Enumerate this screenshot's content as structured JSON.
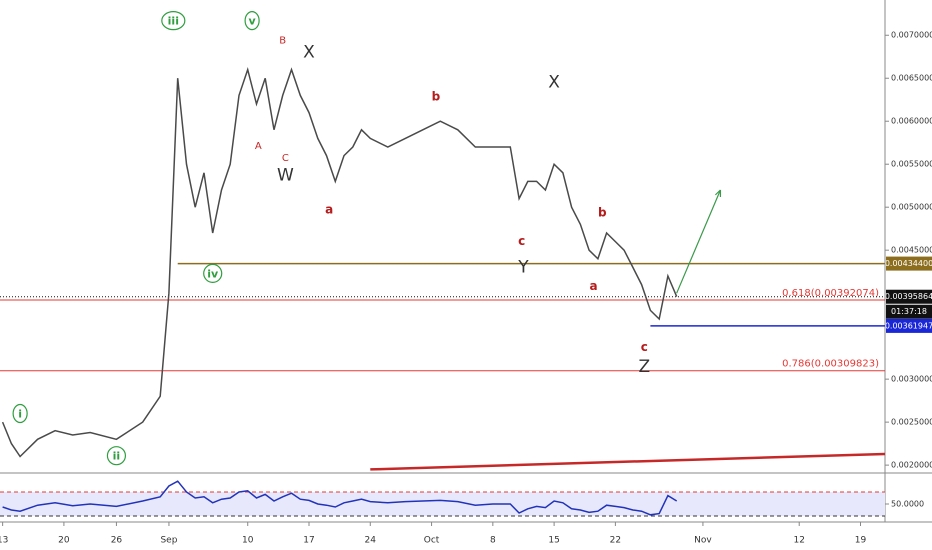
{
  "chart_data": [
    {
      "type": "line",
      "x": [
        0,
        1,
        2,
        4,
        6,
        8,
        10,
        13,
        16,
        18,
        19,
        20,
        21,
        22,
        23,
        24,
        25,
        26,
        27,
        28,
        29,
        30,
        31,
        32,
        33,
        34,
        35,
        36,
        37,
        38,
        39,
        40,
        41,
        42,
        44,
        46,
        48,
        50,
        52,
        54,
        56,
        58,
        59,
        60,
        61,
        62,
        63,
        64,
        65,
        66,
        67,
        68,
        69,
        70,
        71,
        72,
        73,
        74,
        75,
        76,
        77
      ],
      "series": [
        {
          "color": "#4a4a4a",
          "values": [
            0.0025,
            0.00225,
            0.0021,
            0.0023,
            0.0024,
            0.00235,
            0.00238,
            0.0023,
            0.0025,
            0.0028,
            0.004,
            0.0065,
            0.0055,
            0.005,
            0.0054,
            0.0047,
            0.0052,
            0.0055,
            0.0063,
            0.0066,
            0.0062,
            0.0065,
            0.0059,
            0.0063,
            0.0066,
            0.0063,
            0.0061,
            0.0058,
            0.0056,
            0.0053,
            0.0056,
            0.0057,
            0.0059,
            0.0058,
            0.0057,
            0.0058,
            0.0059,
            0.006,
            0.0059,
            0.0057,
            0.0057,
            0.0057,
            0.0051,
            0.0053,
            0.0053,
            0.0052,
            0.0055,
            0.0054,
            0.005,
            0.0048,
            0.0045,
            0.0044,
            0.0047,
            0.0046,
            0.0045,
            0.0043,
            0.0041,
            0.0038,
            0.0037,
            0.0042,
            0.00396
          ]
        }
      ],
      "xlim": [
        -0.3,
        100.8
      ],
      "xticks": [
        {
          "value": 0,
          "label": "13"
        },
        {
          "value": 7,
          "label": "20"
        },
        {
          "value": 13,
          "label": "26"
        },
        {
          "value": 19,
          "label": "Sep"
        },
        {
          "value": 28,
          "label": "10"
        },
        {
          "value": 35,
          "label": "17"
        },
        {
          "value": 42,
          "label": "24"
        },
        {
          "value": 49,
          "label": "Oct"
        },
        {
          "value": 56,
          "label": "8"
        },
        {
          "value": 63,
          "label": "15"
        },
        {
          "value": 70,
          "label": "22"
        },
        {
          "value": 80,
          "label": "Nov"
        },
        {
          "value": 91,
          "label": "12"
        },
        {
          "value": 98,
          "label": "19"
        }
      ],
      "ylim": [
        0.00192,
        0.00741
      ],
      "yticks": [
        {
          "value": 0.007,
          "label": "0.00700000"
        },
        {
          "value": 0.0065,
          "label": "0.00650000"
        },
        {
          "value": 0.006,
          "label": "0.00600000"
        },
        {
          "value": 0.0055,
          "label": "0.00550000"
        },
        {
          "value": 0.005,
          "label": "0.00500000"
        },
        {
          "value": 0.0045,
          "label": "0.00450000"
        },
        {
          "value": 0.003,
          "label": "0.00300000"
        },
        {
          "value": 0.0025,
          "label": "0.00250000"
        },
        {
          "value": 0.002,
          "label": "0.00200000"
        }
      ],
      "levels": [
        {
          "value": 0.00392074,
          "label": "0.618(0.00392074)",
          "color": "#e53935"
        },
        {
          "value": 0.00309823,
          "label": "0.786(0.00309823)",
          "color": "#e53935"
        }
      ],
      "price_boxes": [
        {
          "value": 0.004344,
          "label": "0.00434400",
          "color": "#8d6e1f",
          "from": 20
        },
        {
          "value": 0.00395864,
          "label": "0.00395864",
          "color": "#111111"
        },
        {
          "value": 0.00361947,
          "label": "0.00361947",
          "color": "#1a27d6",
          "from": 74
        }
      ],
      "countdown": "01:37:18",
      "trendline": {
        "color": "#c62828",
        "from": [
          42,
          0.00195
        ],
        "to": [
          100.8,
          0.00213
        ]
      },
      "arrow": {
        "color": "#3a9a4a",
        "from": [
          77,
          0.004
        ],
        "to": [
          82,
          0.0052
        ]
      },
      "annotations": [
        {
          "text": "i",
          "x": 2,
          "y": 0.0026,
          "style": "wave"
        },
        {
          "text": "ii",
          "x": 13,
          "y": 0.00211,
          "style": "wave"
        },
        {
          "text": "iii",
          "x": 19.5,
          "y": 0.00717,
          "style": "wave"
        },
        {
          "text": "iv",
          "x": 24,
          "y": 0.00423,
          "style": "wave"
        },
        {
          "text": "v",
          "x": 28.5,
          "y": 0.00717,
          "style": "wave"
        },
        {
          "text": "A",
          "x": 29.2,
          "y": 0.00571,
          "style": "minor"
        },
        {
          "text": "B",
          "x": 32,
          "y": 0.00694,
          "style": "minor"
        },
        {
          "text": "C",
          "x": 32.3,
          "y": 0.00557,
          "style": "minor"
        },
        {
          "text": "W",
          "x": 32.3,
          "y": 0.00537,
          "style": "major"
        },
        {
          "text": "X",
          "x": 35,
          "y": 0.0068,
          "style": "major"
        },
        {
          "text": "X",
          "x": 63,
          "y": 0.00645,
          "style": "major"
        },
        {
          "text": "Y",
          "x": 59.5,
          "y": 0.0043,
          "style": "major"
        },
        {
          "text": "Z",
          "x": 73.3,
          "y": 0.00314,
          "style": "major"
        },
        {
          "text": "a",
          "x": 37.3,
          "y": 0.00497,
          "style": "sub"
        },
        {
          "text": "b",
          "x": 49.5,
          "y": 0.00628,
          "style": "sub"
        },
        {
          "text": "c",
          "x": 59.3,
          "y": 0.0046,
          "style": "sub"
        },
        {
          "text": "a",
          "x": 67.5,
          "y": 0.00408,
          "style": "sub"
        },
        {
          "text": "b",
          "x": 68.5,
          "y": 0.00493,
          "style": "sub"
        },
        {
          "text": "c",
          "x": 73.3,
          "y": 0.00337,
          "style": "sub"
        }
      ]
    },
    {
      "type": "line",
      "x": [
        0,
        1,
        2,
        4,
        6,
        8,
        10,
        13,
        16,
        18,
        19,
        20,
        21,
        22,
        23,
        24,
        25,
        26,
        27,
        28,
        29,
        30,
        31,
        32,
        33,
        34,
        35,
        36,
        37,
        38,
        39,
        40,
        41,
        42,
        44,
        46,
        48,
        50,
        52,
        54,
        56,
        58,
        59,
        60,
        61,
        62,
        63,
        64,
        65,
        66,
        67,
        68,
        69,
        70,
        71,
        72,
        73,
        74,
        75,
        76,
        77
      ],
      "series": [
        {
          "color": "#2233bb",
          "values": [
            45,
            40,
            38,
            48,
            52,
            47,
            50,
            46,
            55,
            62,
            80,
            88,
            70,
            60,
            62,
            52,
            58,
            60,
            70,
            72,
            60,
            66,
            55,
            62,
            68,
            58,
            56,
            50,
            48,
            45,
            52,
            55,
            58,
            54,
            52,
            54,
            55,
            56,
            54,
            48,
            50,
            50,
            35,
            42,
            46,
            44,
            55,
            52,
            42,
            40,
            36,
            38,
            48,
            46,
            44,
            40,
            38,
            32,
            34,
            64,
            55
          ]
        }
      ],
      "xlim": [
        -0.3,
        100.8
      ],
      "ylim": [
        20,
        100
      ],
      "yticks": [
        {
          "value": 50,
          "label": "50.0000"
        }
      ],
      "bands": [
        30,
        70
      ]
    }
  ]
}
